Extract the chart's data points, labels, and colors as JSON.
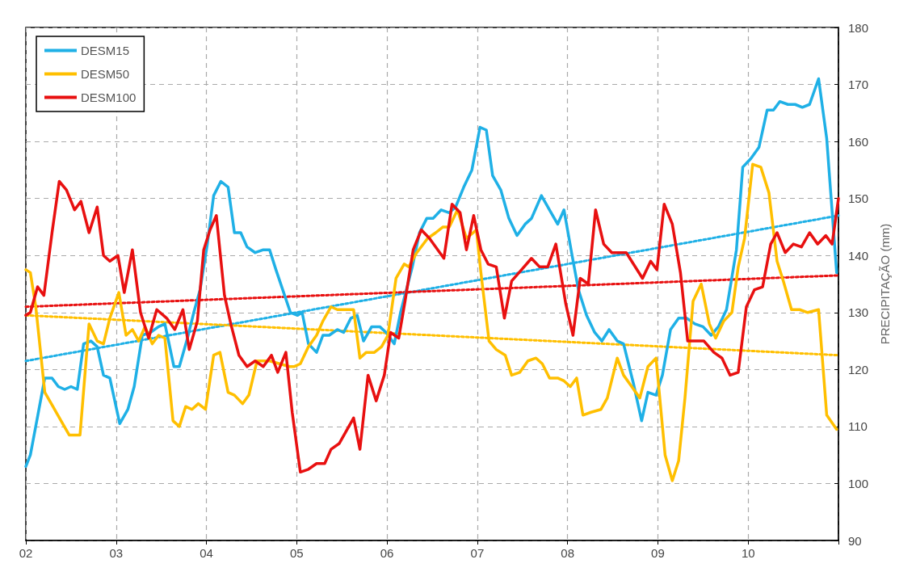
{
  "chart_data": {
    "type": "line",
    "ylabel": "PRECIPITAÇÃO (mm)",
    "xlim": [
      2,
      11
    ],
    "xticks": [
      {
        "value": 2,
        "label": "02"
      },
      {
        "value": 3,
        "label": "03"
      },
      {
        "value": 4,
        "label": "04"
      },
      {
        "value": 5,
        "label": "05"
      },
      {
        "value": 6,
        "label": "06"
      },
      {
        "value": 7,
        "label": "07"
      },
      {
        "value": 8,
        "label": "08"
      },
      {
        "value": 9,
        "label": "09"
      },
      {
        "value": 10,
        "label": "10"
      },
      {
        "value": 11,
        "label": null
      }
    ],
    "ylim": [
      90,
      180
    ],
    "yticks": [
      90,
      100,
      110,
      120,
      130,
      140,
      150,
      160,
      170,
      180
    ],
    "grid": true,
    "legend": "top left",
    "marker": "none",
    "line_style": "solid",
    "series": [
      {
        "name": "DESM15",
        "color": "#1fb0e6",
        "x": [
          2.0,
          2.05,
          2.21,
          2.29,
          2.36,
          2.43,
          2.5,
          2.57,
          2.64,
          2.72,
          2.79,
          2.86,
          2.93,
          3.04,
          3.13,
          3.2,
          3.29,
          3.38,
          3.47,
          3.54,
          3.64,
          3.7,
          3.79,
          3.86,
          3.93,
          4.01,
          4.08,
          4.16,
          4.24,
          4.31,
          4.38,
          4.45,
          4.54,
          4.63,
          4.7,
          4.77,
          4.93,
          5.01,
          5.06,
          5.13,
          5.22,
          5.29,
          5.36,
          5.45,
          5.52,
          5.6,
          5.67,
          5.74,
          5.83,
          5.92,
          5.99,
          6.08,
          6.15,
          6.28,
          6.36,
          6.44,
          6.51,
          6.6,
          6.69,
          6.76,
          6.85,
          6.94,
          7.03,
          7.1,
          7.17,
          7.26,
          7.35,
          7.44,
          7.53,
          7.6,
          7.71,
          7.8,
          7.89,
          7.96,
          8.05,
          8.12,
          8.21,
          8.3,
          8.38,
          8.46,
          8.55,
          8.62,
          8.73,
          8.82,
          8.89,
          8.98,
          9.05,
          9.14,
          9.23,
          9.32,
          9.41,
          9.5,
          9.59,
          9.67,
          9.76,
          9.87,
          9.94,
          10.03,
          10.12,
          10.21,
          10.28,
          10.35,
          10.44,
          10.52,
          10.6,
          10.68,
          10.78,
          10.87,
          10.98
        ],
        "values": [
          103,
          105,
          118.5,
          118.5,
          117,
          116.5,
          117,
          116.5,
          124.5,
          125,
          124,
          119,
          118.5,
          110.5,
          113,
          117,
          126,
          126.5,
          127.5,
          128,
          120.5,
          120.5,
          125.5,
          130,
          134,
          142,
          150.5,
          153,
          152,
          144,
          144,
          141.5,
          140.5,
          141,
          141,
          137.5,
          130,
          129.5,
          130,
          124.5,
          123,
          126,
          126,
          127,
          126.5,
          129,
          129.5,
          125,
          127.5,
          127.5,
          126.5,
          124.5,
          130,
          138,
          144,
          146.5,
          146.5,
          148,
          147.5,
          148.5,
          152,
          155,
          162.5,
          162,
          154,
          151.5,
          146.5,
          143.5,
          145.5,
          146.5,
          150.5,
          148,
          145.5,
          148,
          140,
          134,
          129.5,
          126.5,
          125,
          127,
          125,
          124.5,
          117.5,
          111,
          116,
          115.5,
          119,
          127,
          129,
          129,
          128,
          127.5,
          126,
          127.5,
          130.5,
          141,
          155.5,
          157,
          159,
          165.5,
          165.5,
          167,
          166.5,
          166.5,
          166,
          166.5,
          171,
          160.5,
          137
        ]
      },
      {
        "name": "DESM50",
        "color": "#ffbf00",
        "x": [
          2.0,
          2.05,
          2.11,
          2.21,
          2.3,
          2.39,
          2.48,
          2.55,
          2.6,
          2.7,
          2.79,
          2.86,
          2.93,
          3.03,
          3.11,
          3.18,
          3.25,
          3.32,
          3.4,
          3.47,
          3.54,
          3.63,
          3.7,
          3.77,
          3.84,
          3.91,
          3.99,
          4.08,
          4.15,
          4.24,
          4.31,
          4.4,
          4.47,
          4.56,
          4.63,
          4.7,
          4.81,
          4.92,
          4.97,
          5.04,
          5.13,
          5.22,
          5.29,
          5.38,
          5.45,
          5.54,
          5.63,
          5.7,
          5.77,
          5.86,
          5.94,
          6.01,
          6.1,
          6.19,
          6.24,
          6.33,
          6.45,
          6.54,
          6.62,
          6.69,
          6.78,
          6.88,
          6.99,
          7.04,
          7.13,
          7.21,
          7.31,
          7.38,
          7.47,
          7.56,
          7.65,
          7.72,
          7.8,
          7.89,
          7.96,
          8.03,
          8.1,
          8.17,
          8.26,
          8.37,
          8.44,
          8.55,
          8.62,
          8.71,
          8.8,
          8.89,
          8.98,
          9.08,
          9.16,
          9.23,
          9.3,
          9.39,
          9.48,
          9.57,
          9.64,
          9.73,
          9.82,
          9.89,
          9.96,
          10.05,
          10.14,
          10.23,
          10.32,
          10.39,
          10.48,
          10.57,
          10.66,
          10.78,
          10.87,
          10.98
        ],
        "values": [
          137.5,
          137,
          131,
          116,
          113.5,
          111,
          108.5,
          108.5,
          108.5,
          128,
          125,
          124.5,
          129,
          133.5,
          126,
          127,
          125,
          127.5,
          124.5,
          126,
          125.5,
          111,
          110,
          113.5,
          113,
          114,
          113,
          122.5,
          123,
          116,
          115.5,
          114,
          115.5,
          121.5,
          121.5,
          121.5,
          121,
          120.5,
          120.5,
          121,
          124,
          126,
          128.5,
          131,
          130.5,
          130.5,
          130.5,
          122,
          123,
          123,
          124,
          126,
          136,
          138.5,
          138,
          140.5,
          143,
          144,
          145,
          145,
          148,
          143,
          144.5,
          137,
          125,
          123.5,
          122.5,
          119,
          119.5,
          121.5,
          122,
          121,
          118.5,
          118.5,
          118,
          117,
          118.5,
          112,
          112.5,
          113,
          115,
          122,
          119,
          117,
          115,
          120.5,
          122,
          105,
          100.5,
          104,
          115,
          132,
          135,
          128,
          125.5,
          128.5,
          130,
          138,
          143,
          156,
          155.5,
          151,
          139,
          135.5,
          130.5,
          130.5,
          130,
          130.5,
          112,
          109.5
        ]
      },
      {
        "name": "DESM100",
        "color": "#e81010",
        "x": [
          2.0,
          2.05,
          2.13,
          2.2,
          2.29,
          2.37,
          2.45,
          2.54,
          2.61,
          2.7,
          2.79,
          2.86,
          2.93,
          3.02,
          3.09,
          3.18,
          3.27,
          3.36,
          3.45,
          3.56,
          3.65,
          3.74,
          3.81,
          3.9,
          3.97,
          4.04,
          4.11,
          4.2,
          4.27,
          4.36,
          4.45,
          4.54,
          4.63,
          4.72,
          4.79,
          4.88,
          4.95,
          5.04,
          5.13,
          5.22,
          5.31,
          5.38,
          5.47,
          5.63,
          5.7,
          5.79,
          5.88,
          5.97,
          6.04,
          6.13,
          6.2,
          6.29,
          6.38,
          6.47,
          6.63,
          6.72,
          6.81,
          6.88,
          6.96,
          7.04,
          7.12,
          7.21,
          7.3,
          7.38,
          7.49,
          7.6,
          7.69,
          7.78,
          7.87,
          7.98,
          8.06,
          8.14,
          8.23,
          8.31,
          8.4,
          8.49,
          8.58,
          8.65,
          8.83,
          8.92,
          8.99,
          9.07,
          9.16,
          9.25,
          9.33,
          9.42,
          9.51,
          9.62,
          9.71,
          9.8,
          9.89,
          9.98,
          10.07,
          10.16,
          10.25,
          10.32,
          10.41,
          10.5,
          10.59,
          10.68,
          10.77,
          10.86,
          10.93,
          11.0
        ],
        "values": [
          129.5,
          130,
          134.5,
          133,
          144,
          153,
          151.5,
          148,
          149.5,
          144,
          148.5,
          140,
          139,
          140,
          133.5,
          141,
          130,
          125.5,
          130.5,
          129,
          127,
          130.5,
          123.5,
          128.5,
          141,
          144.5,
          147,
          133,
          128,
          122.5,
          120.5,
          121.5,
          120.5,
          122.5,
          119.5,
          123,
          112.5,
          102,
          102.5,
          103.5,
          103.5,
          106,
          107,
          111.5,
          106,
          119,
          114.5,
          119,
          126.5,
          125.5,
          132,
          141,
          144.5,
          143,
          139.5,
          149,
          147.5,
          141,
          147,
          141,
          138.5,
          138,
          129,
          135.5,
          137.5,
          139.5,
          138,
          138,
          142,
          131.5,
          126,
          136,
          135,
          148,
          142,
          140.5,
          140.5,
          140.5,
          136,
          139,
          137.5,
          149,
          145.5,
          137,
          125,
          125,
          125,
          123,
          122,
          119,
          119.5,
          131,
          134,
          134.5,
          142,
          144,
          140.5,
          142,
          141.5,
          144,
          142,
          143.5,
          142,
          150
        ]
      },
      {
        "color": "#1fb0e6",
        "line_style": "dotted",
        "x": [
          2,
          11
        ],
        "values": [
          121.5,
          147
        ]
      },
      {
        "color": "#ffbf00",
        "line_style": "dotted",
        "x": [
          2,
          11
        ],
        "values": [
          129.5,
          122.5
        ]
      },
      {
        "color": "#e81010",
        "line_style": "dotted",
        "x": [
          2,
          11
        ],
        "values": [
          131,
          136.5
        ]
      }
    ]
  }
}
